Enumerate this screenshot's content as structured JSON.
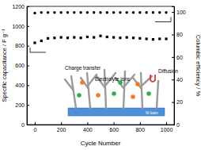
{
  "chart_data": {
    "type": "scatter",
    "x_label": "Cycle Number",
    "y_label": "Specific capacitance / F g⁻¹",
    "y2_label": "Columbic efficiency / %",
    "x": [
      0,
      50,
      100,
      150,
      200,
      250,
      300,
      350,
      400,
      450,
      500,
      550,
      600,
      650,
      700,
      750,
      800,
      850,
      900,
      950,
      1000
    ],
    "xlim": [
      -60,
      1060
    ],
    "xticks": [
      0,
      200,
      400,
      600,
      800,
      1000
    ],
    "ylim": [
      0,
      1200
    ],
    "yticks": [
      0,
      200,
      400,
      600,
      800,
      1000,
      1200
    ],
    "y2lim": [
      0,
      105
    ],
    "y2ticks": [
      0,
      20,
      40,
      60,
      80,
      100
    ],
    "series": [
      {
        "color": "#000000",
        "marker": "square",
        "values": [
          830,
          850,
          875,
          880,
          885,
          880,
          885,
          880,
          890,
          885,
          900,
          890,
          885,
          880,
          885,
          880,
          875,
          870,
          865,
          870,
          870
        ]
      },
      {
        "color": "#000000",
        "marker": "circle",
        "axis": "y2",
        "values": [
          99,
          99.5,
          99.5,
          99.5,
          99.5,
          99.5,
          99.5,
          99.5,
          99.5,
          99.5,
          99.5,
          99.5,
          99.5,
          99.5,
          99.5,
          99.5,
          99.5,
          99.5,
          99.5,
          99.5,
          99.5
        ]
      }
    ],
    "annotations": [
      "Charge transfer",
      "Electrolyte ions",
      "Diffusion",
      "Ni foam"
    ]
  }
}
